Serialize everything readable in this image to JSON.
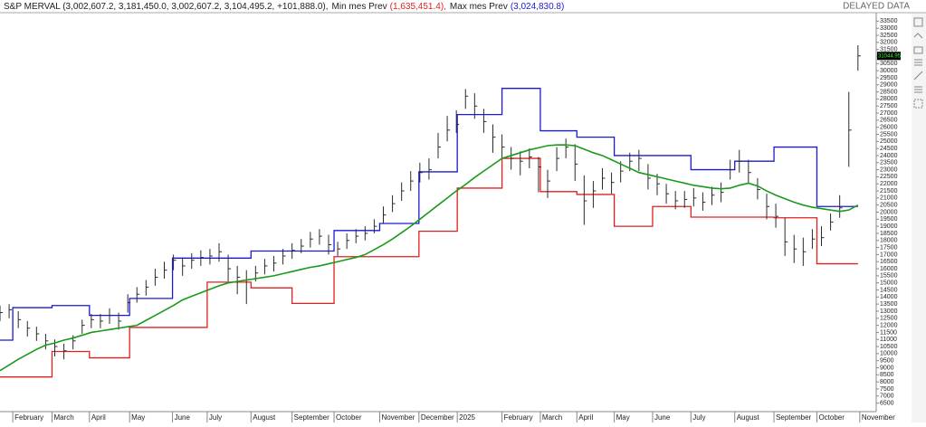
{
  "chart_data": {
    "type": "ohlc",
    "header": {
      "symbol": "S&P MERVAL",
      "quote": "(3,002,607.2, 3,181,450.0, 3,002,607.2, 3,104,495.2, +101,888.0),",
      "status": "DELAYED DATA"
    },
    "x": [
      0,
      1,
      2,
      3,
      4,
      5,
      6,
      7,
      8,
      9,
      10,
      11,
      12,
      13,
      14,
      15,
      16,
      17,
      18,
      19,
      20,
      21,
      22,
      23,
      24,
      25,
      26,
      27,
      28,
      29,
      30,
      31,
      32,
      33,
      34,
      35,
      36,
      37,
      38,
      39,
      40,
      41,
      42,
      43,
      44,
      45,
      46,
      47,
      48,
      49,
      50,
      51,
      52,
      53,
      54,
      55,
      56,
      57,
      58,
      59,
      60,
      61,
      62,
      63,
      64,
      65,
      66,
      67,
      68,
      69,
      70,
      71,
      72,
      73,
      74,
      75,
      76,
      77,
      78,
      79,
      80,
      81,
      82,
      83,
      84,
      85,
      86,
      87,
      88,
      89,
      90,
      91,
      92,
      93,
      94
    ],
    "high": [
      13400,
      13500,
      13000,
      12300,
      11900,
      11400,
      11000,
      10700,
      11300,
      12400,
      12800,
      12800,
      13200,
      12900,
      14200,
      14700,
      15200,
      16000,
      16500,
      17000,
      16800,
      17100,
      17300,
      17400,
      17800,
      17000,
      16200,
      15900,
      16200,
      16700,
      16900,
      17400,
      17800,
      18100,
      18600,
      18800,
      18400,
      17900,
      18500,
      18800,
      19000,
      19500,
      20400,
      21200,
      22100,
      22900,
      23500,
      23800,
      25600,
      26800,
      27200,
      28700,
      28400,
      27300,
      26200,
      25500,
      24600,
      24300,
      24500,
      23900,
      23000,
      24600,
      25200,
      24800,
      22600,
      22200,
      23100,
      22800,
      23600,
      24200,
      24400,
      23400,
      22700,
      22000,
      21500,
      21500,
      21700,
      21400,
      21800,
      22100,
      23700,
      24400,
      23700,
      22400,
      21300,
      20600,
      19600,
      18400,
      18200,
      18800,
      19000,
      19900,
      21200,
      28500,
      31800
    ],
    "low": [
      12300,
      12500,
      11800,
      11200,
      10900,
      10300,
      9800,
      9600,
      10300,
      11400,
      11800,
      11800,
      12100,
      11700,
      12900,
      13600,
      14100,
      14800,
      15300,
      15900,
      15500,
      16000,
      16200,
      16300,
      16500,
      15100,
      14200,
      13500,
      15100,
      15600,
      15800,
      16300,
      16700,
      17100,
      17500,
      17700,
      17000,
      16900,
      17400,
      17800,
      18000,
      18500,
      19200,
      20000,
      20800,
      21500,
      22100,
      22300,
      23800,
      25000,
      25600,
      27300,
      26600,
      25600,
      24200,
      23800,
      23000,
      22600,
      23100,
      21400,
      21000,
      22900,
      23800,
      22200,
      19100,
      20300,
      21600,
      21300,
      22100,
      22900,
      22900,
      21600,
      21200,
      20600,
      20200,
      20300,
      20400,
      20100,
      20500,
      20700,
      22300,
      22800,
      22000,
      20900,
      19500,
      18900,
      16900,
      16400,
      16200,
      17400,
      17600,
      18700,
      19600,
      23200,
      30000
    ],
    "close": [
      12900,
      13100,
      12400,
      11800,
      11400,
      10900,
      10500,
      10200,
      10900,
      12000,
      12400,
      12300,
      12700,
      12300,
      13600,
      14200,
      14700,
      15400,
      15900,
      16600,
      16200,
      16600,
      16800,
      16900,
      17200,
      16000,
      15400,
      15200,
      15700,
      16200,
      16400,
      16900,
      17300,
      17600,
      18100,
      18300,
      17700,
      17400,
      18000,
      18300,
      18500,
      19000,
      19800,
      20600,
      21500,
      22200,
      22800,
      23000,
      24600,
      25800,
      26200,
      28200,
      27500,
      26400,
      25300,
      24600,
      23800,
      23600,
      23900,
      23200,
      22200,
      23800,
      24600,
      23400,
      20800,
      21500,
      22400,
      22100,
      22900,
      23600,
      23800,
      22400,
      22000,
      21300,
      20800,
      20900,
      21000,
      20700,
      21200,
      21400,
      23000,
      23600,
      22800,
      21600,
      20400,
      19700,
      17900,
      17400,
      17200,
      18100,
      18200,
      19300,
      20300,
      25800,
      31044.95
    ],
    "bar_color": "#2b2b2b",
    "last_label": "31044.95",
    "ma": {
      "color": "#1a9a1a",
      "values": [
        8800,
        9200,
        9600,
        9950,
        10300,
        10600,
        10750,
        10950,
        11100,
        11300,
        11500,
        11600,
        11700,
        11800,
        11900,
        12000,
        12350,
        12700,
        13050,
        13400,
        13800,
        14050,
        14300,
        14550,
        14800,
        15000,
        15100,
        15200,
        15300,
        15400,
        15500,
        15650,
        15800,
        15950,
        16100,
        16200,
        16350,
        16500,
        16650,
        16800,
        17000,
        17350,
        17700,
        18100,
        18550,
        19000,
        19500,
        20000,
        20500,
        21000,
        21500,
        21950,
        22450,
        22900,
        23350,
        23800,
        24000,
        24200,
        24400,
        24550,
        24700,
        24750,
        24750,
        24700,
        24450,
        24200,
        24000,
        23700,
        23400,
        23100,
        22800,
        22650,
        22500,
        22350,
        22200,
        22050,
        21900,
        21800,
        21700,
        21650,
        21700,
        21900,
        22050,
        21850,
        21500,
        21200,
        20950,
        20700,
        20500,
        20350,
        20250,
        20150,
        20050,
        20150,
        20500
      ]
    },
    "steps": [
      {
        "name": "Min mes Prev",
        "value_label": "(1,635,451.4),",
        "color": "#e02020",
        "x": [
          0,
          1.4,
          5.7,
          9.8,
          14.2,
          18.9,
          22.7,
          27.5,
          32.0,
          36.6,
          41.6,
          45.9,
          50.1,
          55.0,
          59.2,
          63.2,
          67.3,
          71.5,
          75.7,
          80.5,
          84.8,
          89.5
        ],
        "values": [
          8350,
          8350,
          10150,
          9700,
          11850,
          11850,
          15050,
          14650,
          13550,
          16850,
          16850,
          18650,
          21700,
          23800,
          21450,
          21250,
          19000,
          20400,
          19650,
          19650,
          19600,
          16350
        ]
      },
      {
        "name": "Max mes Prev",
        "value_label": "(3,024,830.8)",
        "color": "#1a1ad0",
        "x": [
          0,
          1.4,
          5.7,
          9.8,
          14.2,
          18.9,
          22.7,
          27.5,
          32.0,
          36.6,
          41.6,
          45.9,
          50.1,
          55.0,
          59.2,
          63.2,
          67.3,
          71.5,
          75.7,
          80.5,
          84.8,
          89.5
        ],
        "values": [
          10950,
          13250,
          13400,
          12700,
          13900,
          16750,
          16750,
          17250,
          17250,
          18700,
          19200,
          22850,
          26900,
          28750,
          25750,
          25300,
          24000,
          24000,
          23000,
          23600,
          24600,
          20400
        ]
      }
    ],
    "xlim": [
      0,
      96
    ],
    "xticks": [
      {
        "value": 1.4,
        "label": "February"
      },
      {
        "value": 5.7,
        "label": "March"
      },
      {
        "value": 9.8,
        "label": "April"
      },
      {
        "value": 14.2,
        "label": "May"
      },
      {
        "value": 18.9,
        "label": "June"
      },
      {
        "value": 22.7,
        "label": "July"
      },
      {
        "value": 27.5,
        "label": "August"
      },
      {
        "value": 32.0,
        "label": "September"
      },
      {
        "value": 36.6,
        "label": "October"
      },
      {
        "value": 41.6,
        "label": "November"
      },
      {
        "value": 45.9,
        "label": "December"
      },
      {
        "value": 50.1,
        "label": "2025"
      },
      {
        "value": 55.0,
        "label": "February"
      },
      {
        "value": 59.2,
        "label": "March"
      },
      {
        "value": 63.2,
        "label": "April"
      },
      {
        "value": 67.3,
        "label": "May"
      },
      {
        "value": 71.5,
        "label": "June"
      },
      {
        "value": 75.7,
        "label": "July"
      },
      {
        "value": 80.5,
        "label": "August"
      },
      {
        "value": 84.8,
        "label": "September"
      },
      {
        "value": 89.5,
        "label": "October"
      },
      {
        "value": 94.2,
        "label": "November"
      }
    ],
    "ylim": [
      5900,
      34100
    ],
    "yticks": [
      6500,
      7000,
      7500,
      8000,
      8500,
      9000,
      9500,
      10000,
      10500,
      11000,
      11500,
      12000,
      12500,
      13000,
      13500,
      14000,
      14500,
      15000,
      15500,
      16000,
      16500,
      17000,
      17500,
      18000,
      18500,
      19000,
      19500,
      20000,
      20500,
      21000,
      21500,
      22000,
      22500,
      23000,
      23500,
      24000,
      24500,
      25000,
      25500,
      26000,
      26500,
      27000,
      27500,
      28000,
      28500,
      29000,
      29500,
      30000,
      30500,
      31000,
      31500,
      32000,
      32500,
      33000,
      33500
    ]
  }
}
